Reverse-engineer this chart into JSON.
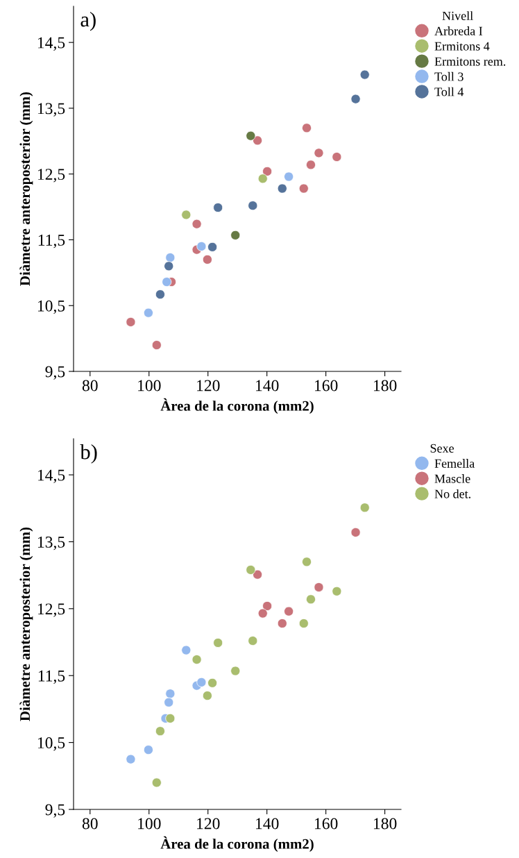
{
  "chart_data": [
    {
      "type": "scatter",
      "xlabel": "Àrea de la corona (mm2)",
      "ylabel": "Diàmetre anteroposterior (mm)",
      "legend_title": "Nivell",
      "annotations": [
        "a)"
      ],
      "legend": "top right",
      "marker": "circle",
      "grid": false,
      "xlim": [
        74.4,
        185.5
      ],
      "xticks": [
        80,
        100,
        120,
        140,
        160,
        180
      ],
      "ylim": [
        9.5,
        15.05
      ],
      "yticks": [
        {
          "value": 9.5,
          "label": "9,5"
        },
        {
          "value": 10.5,
          "label": "10,5"
        },
        {
          "value": 11.5,
          "label": "11,5"
        },
        {
          "value": 12.5,
          "label": "12,5"
        },
        {
          "value": 13.5,
          "label": "13,5"
        },
        {
          "value": 14.5,
          "label": "14,5"
        }
      ],
      "series": [
        {
          "name": "Arbreda I",
          "color": "#c9737a",
          "x": [
            153.5,
            136.8,
            157.6,
            154.9,
            163.7,
            140.1,
            152.5,
            116.2,
            116.2,
            119.8,
            107.6,
            93.8,
            102.6
          ],
          "values": [
            13.2,
            13.01,
            12.82,
            12.64,
            12.76,
            12.54,
            12.28,
            11.74,
            11.35,
            11.2,
            10.86,
            10.25,
            9.9
          ]
        },
        {
          "name": "Ermitons 4",
          "color": "#a9bd6e",
          "x": [
            138.6,
            112.6
          ],
          "values": [
            12.43,
            11.88
          ]
        },
        {
          "name": "Ermitons rem.",
          "color": "#667a44",
          "x": [
            134.5,
            129.3
          ],
          "values": [
            13.08,
            11.57
          ]
        },
        {
          "name": "Toll 3",
          "color": "#93b8ee",
          "x": [
            147.4,
            117.8,
            107.2,
            106.0,
            99.8
          ],
          "values": [
            12.46,
            11.4,
            11.23,
            10.86,
            10.39
          ]
        },
        {
          "name": "Toll 4",
          "color": "#55739a",
          "x": [
            173.2,
            170.1,
            123.4,
            135.2,
            145.2,
            121.5,
            106.7,
            103.8
          ],
          "values": [
            14.01,
            13.64,
            11.99,
            12.02,
            12.28,
            11.39,
            11.1,
            10.67
          ]
        }
      ]
    },
    {
      "type": "scatter",
      "xlabel": "Àrea de la corona (mm2)",
      "ylabel": "Diàmetre anteroposterior (mm)",
      "legend_title": "Sexe",
      "annotations": [
        "b)"
      ],
      "legend": "top right",
      "marker": "circle",
      "grid": false,
      "xlim": [
        74.4,
        185.5
      ],
      "xticks": [
        80,
        100,
        120,
        140,
        160,
        180
      ],
      "ylim": [
        9.5,
        15.04
      ],
      "yticks": [
        {
          "value": 9.5,
          "label": "9,5"
        },
        {
          "value": 10.5,
          "label": "10,5"
        },
        {
          "value": 11.5,
          "label": "11,5"
        },
        {
          "value": 12.5,
          "label": "12,5"
        },
        {
          "value": 13.5,
          "label": "13,5"
        },
        {
          "value": 14.5,
          "label": "14,5"
        }
      ],
      "series": [
        {
          "name": "Femella",
          "color": "#93b8ee",
          "x": [
            112.6,
            116.2,
            117.8,
            107.2,
            106.7,
            105.6,
            99.8,
            93.8
          ],
          "values": [
            11.88,
            11.35,
            11.4,
            11.23,
            11.1,
            10.86,
            10.39,
            10.25
          ]
        },
        {
          "name": "Mascle",
          "color": "#c9737a",
          "x": [
            170.1,
            136.8,
            157.6,
            140.1,
            138.6,
            147.4,
            145.2
          ],
          "values": [
            13.64,
            13.01,
            12.82,
            12.54,
            12.43,
            12.46,
            12.28
          ]
        },
        {
          "name": "No det.",
          "color": "#a9bd6e",
          "x": [
            173.2,
            134.5,
            153.5,
            154.9,
            163.7,
            152.5,
            135.2,
            123.4,
            116.2,
            129.3,
            121.5,
            119.8,
            107.2,
            103.8,
            102.6
          ],
          "values": [
            14.01,
            13.08,
            13.2,
            12.64,
            12.76,
            12.28,
            12.02,
            11.99,
            11.74,
            11.57,
            11.39,
            11.2,
            10.86,
            10.67,
            9.9
          ]
        }
      ]
    }
  ]
}
